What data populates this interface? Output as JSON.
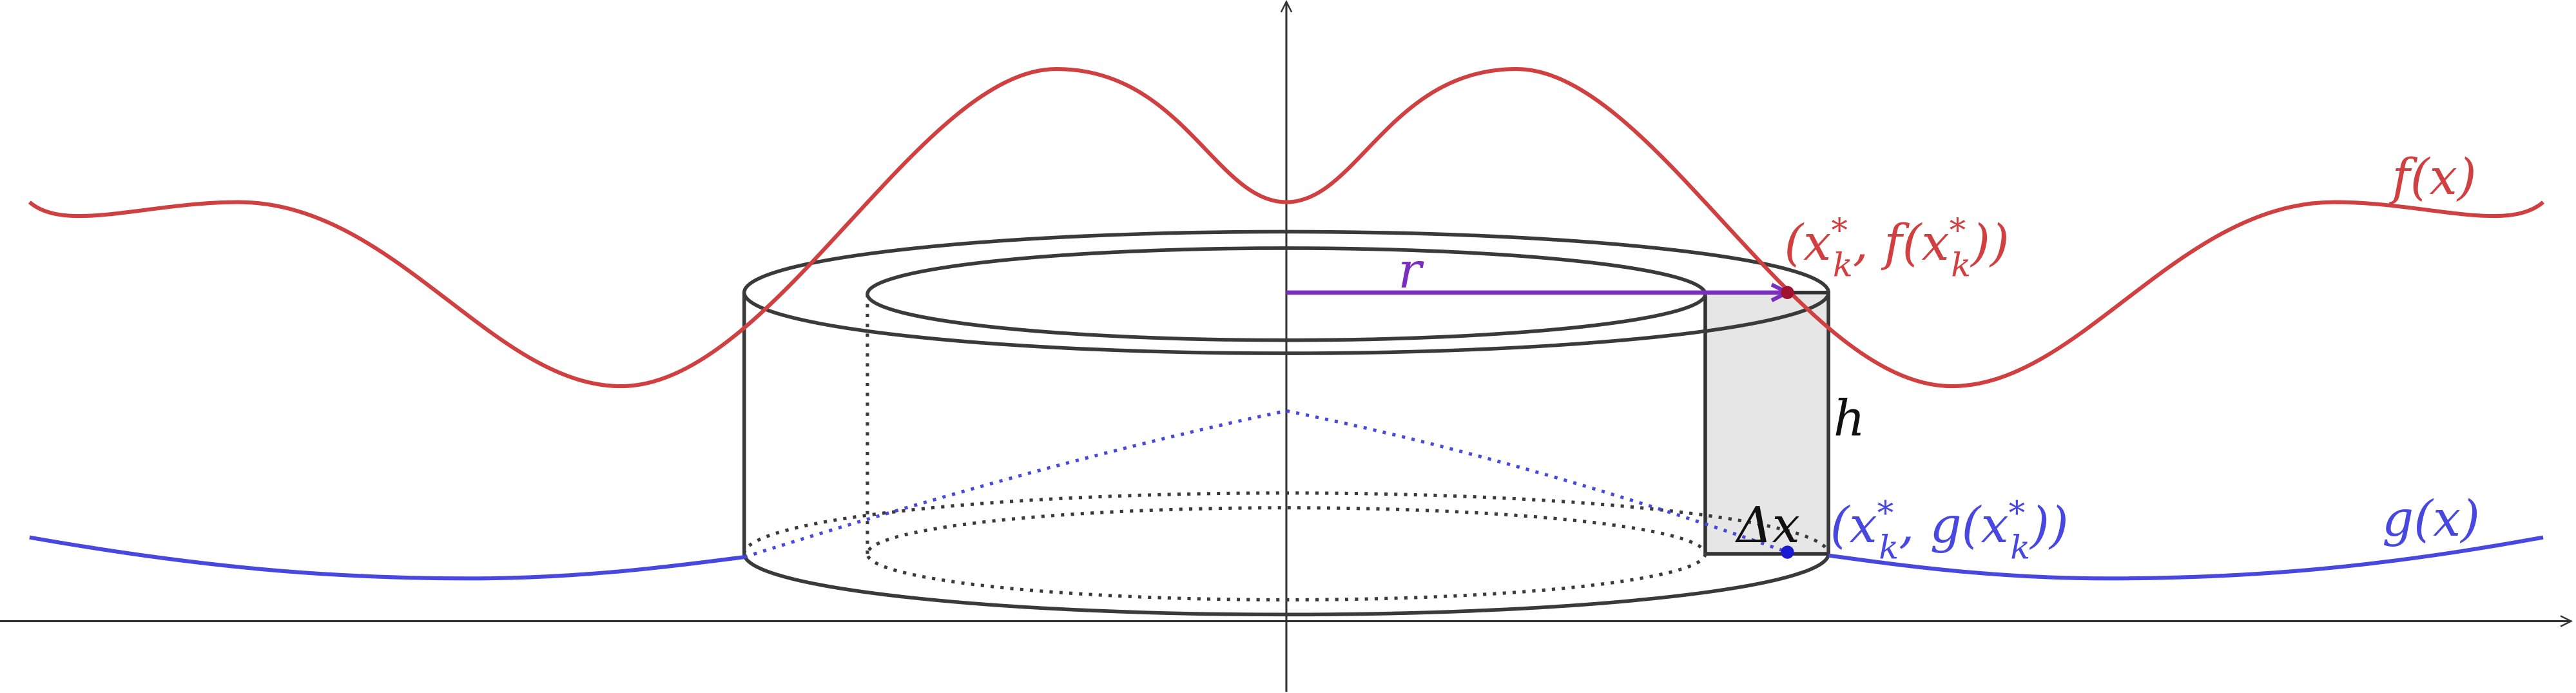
{
  "labels": {
    "f": "f(x)",
    "g": "g(x)",
    "r": "r",
    "h": "h",
    "delta_x": "Δx",
    "point_f": {
      "parts": [
        "(",
        "x",
        "*",
        "k",
        ", f(",
        "x",
        "*",
        "k",
        "))"
      ]
    },
    "point_g": {
      "parts": [
        "(",
        "x",
        "*",
        "k",
        ", g(",
        "x",
        "*",
        "k",
        "))"
      ]
    }
  }
}
